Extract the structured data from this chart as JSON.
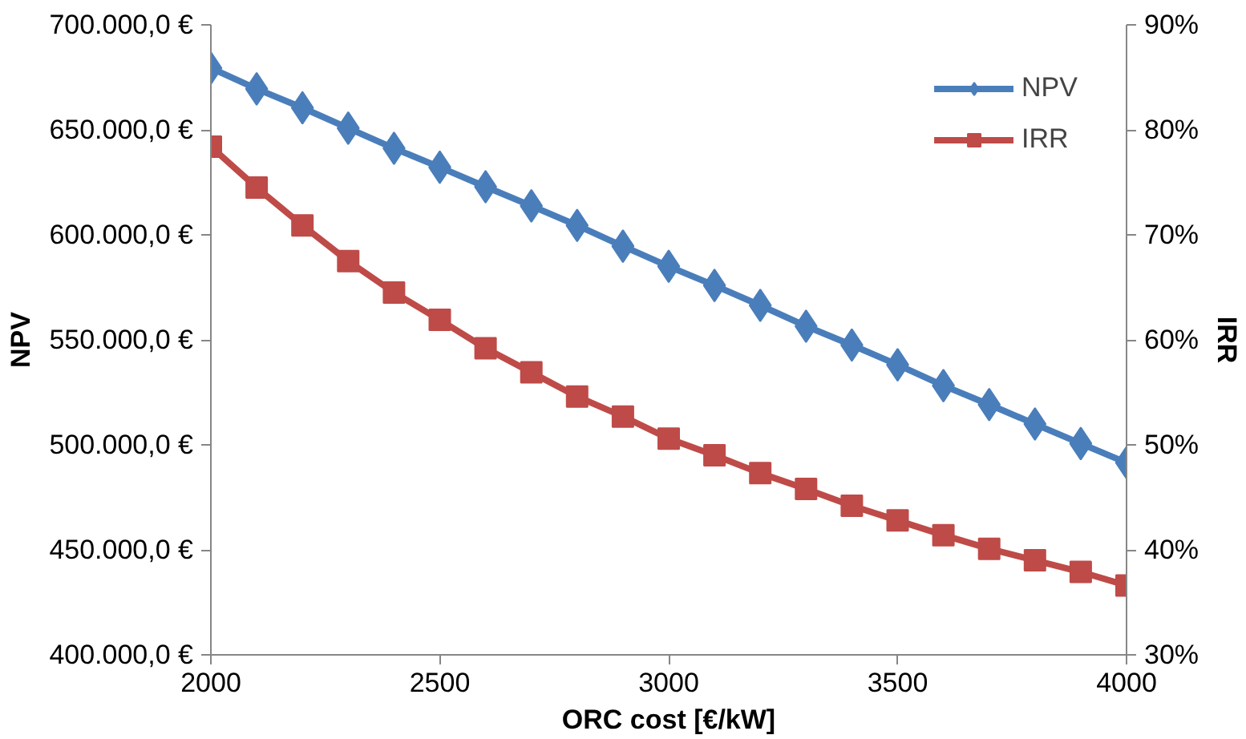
{
  "chart_data": {
    "type": "line",
    "xlabel": "ORC cost [€/kW]",
    "ylabel": "NPV",
    "y2label": "IRR",
    "x": [
      2000,
      2100,
      2200,
      2300,
      2400,
      2500,
      2600,
      2700,
      2800,
      2900,
      3000,
      3100,
      3200,
      3300,
      3400,
      3500,
      3600,
      3700,
      3800,
      3900,
      4000
    ],
    "series": [
      {
        "name": "NPV",
        "color": "#4a7ebb",
        "marker": "diamond",
        "values": [
          679400,
          669500,
          660500,
          650800,
          641200,
          632200,
          622900,
          613800,
          604500,
          594600,
          585000,
          575900,
          566400,
          556500,
          547500,
          538100,
          528200,
          519200,
          509900,
          500600,
          491500
        ]
      },
      {
        "name": "IRR",
        "color": "#be4b48",
        "marker": "square",
        "axis": "y2",
        "values": [
          78.4,
          74.5,
          70.9,
          67.5,
          64.5,
          61.9,
          59.2,
          56.9,
          54.6,
          52.7,
          50.6,
          49.0,
          47.3,
          45.8,
          44.2,
          42.8,
          41.4,
          40.1,
          39.0,
          37.9,
          36.6
        ]
      }
    ],
    "xlim": [
      2000,
      4000
    ],
    "xticks": [
      2000,
      2500,
      3000,
      3500,
      4000
    ],
    "ylim": [
      400000,
      700000
    ],
    "yticks": [
      {
        "value": 400000,
        "label": "400.000,0 €"
      },
      {
        "value": 450000,
        "label": "450.000,0 €"
      },
      {
        "value": 500000,
        "label": "500.000,0 €"
      },
      {
        "value": 550000,
        "label": "550.000,0 €"
      },
      {
        "value": 600000,
        "label": "600.000,0 €"
      },
      {
        "value": 650000,
        "label": "650.000,0 €"
      },
      {
        "value": 700000,
        "label": "700.000,0 €"
      }
    ],
    "y2lim": [
      30,
      90
    ],
    "y2ticks": [
      {
        "value": 30,
        "label": "30%"
      },
      {
        "value": 40,
        "label": "40%"
      },
      {
        "value": 50,
        "label": "50%"
      },
      {
        "value": 60,
        "label": "60%"
      },
      {
        "value": 70,
        "label": "70%"
      },
      {
        "value": 80,
        "label": "80%"
      },
      {
        "value": 90,
        "label": "90%"
      }
    ],
    "grid": false,
    "legend": "top right",
    "line_style": "solid"
  }
}
